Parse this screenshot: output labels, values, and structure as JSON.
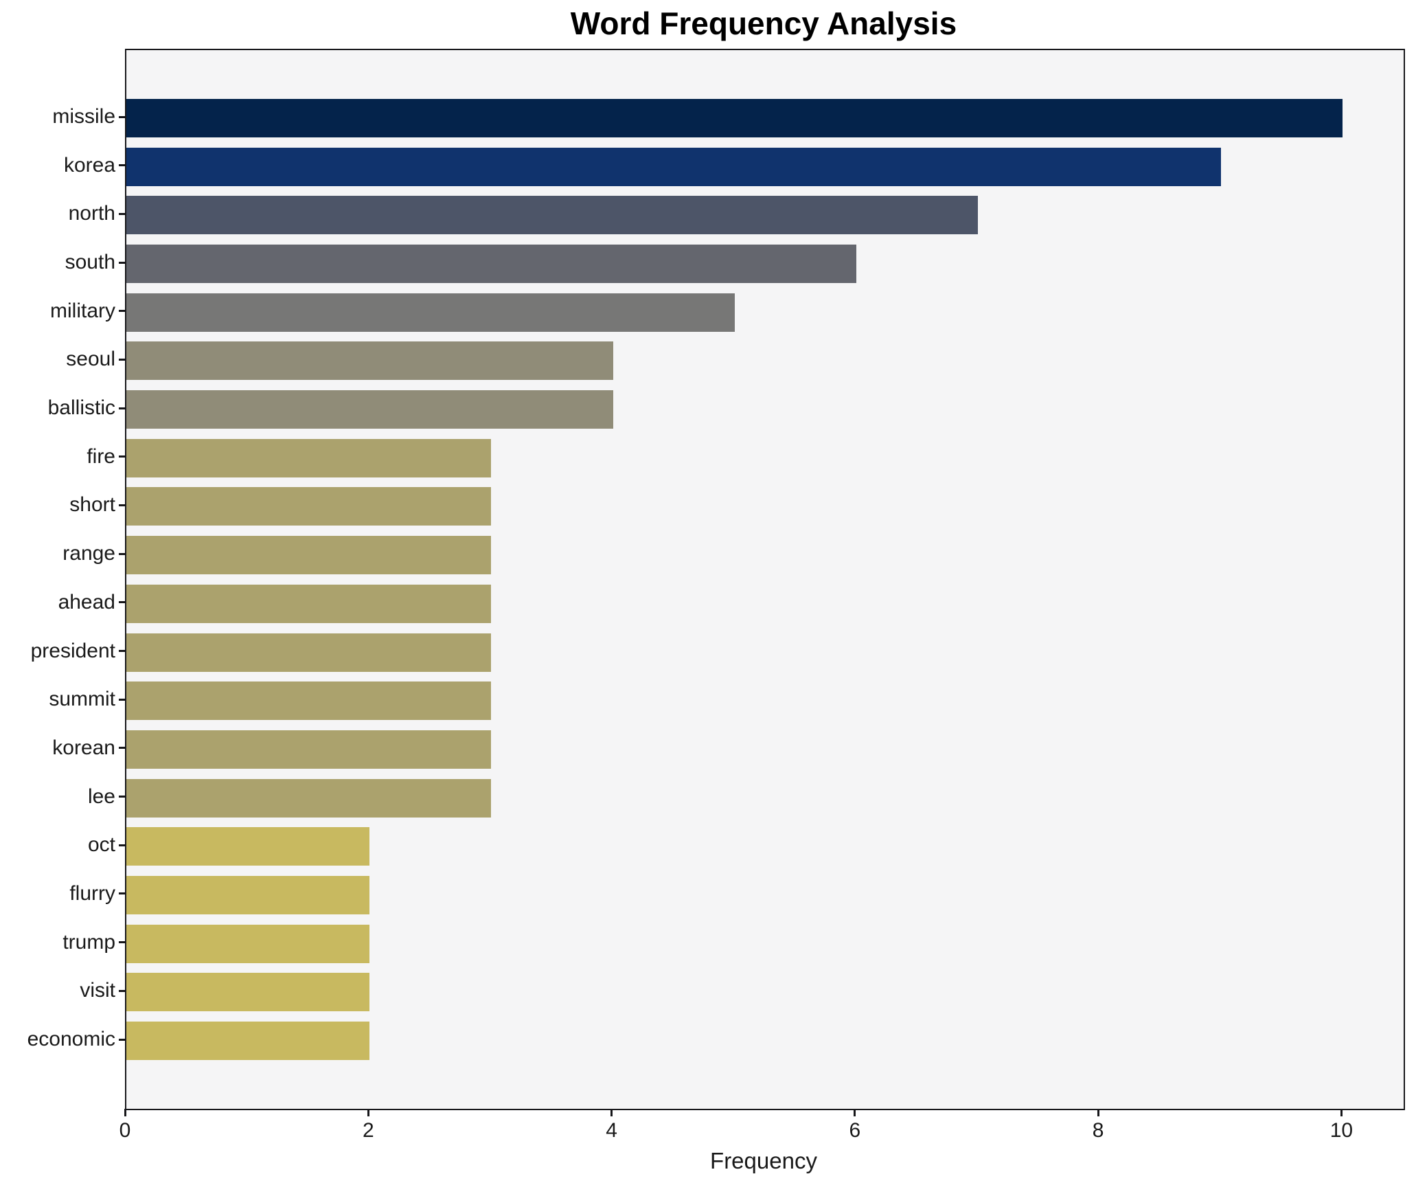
{
  "chart_data": {
    "type": "bar",
    "orientation": "horizontal",
    "title": "Word Frequency Analysis",
    "xlabel": "Frequency",
    "ylabel": "",
    "categories": [
      "missile",
      "korea",
      "north",
      "south",
      "military",
      "seoul",
      "ballistic",
      "fire",
      "short",
      "range",
      "ahead",
      "president",
      "summit",
      "korean",
      "lee",
      "oct",
      "flurry",
      "trump",
      "visit",
      "economic"
    ],
    "values": [
      10,
      9,
      7,
      6,
      5,
      4,
      4,
      3,
      3,
      3,
      3,
      3,
      3,
      3,
      3,
      2,
      2,
      2,
      2,
      2
    ],
    "bar_colors": [
      "#04234b",
      "#10336d",
      "#4d5568",
      "#64666e",
      "#777776",
      "#908c78",
      "#908c78",
      "#aba26d",
      "#aba26d",
      "#aba26d",
      "#aba26d",
      "#aba26d",
      "#aba26d",
      "#aba26d",
      "#aba26d",
      "#c8b960",
      "#c8b960",
      "#c8b960",
      "#c8b960",
      "#c8b960"
    ],
    "xlim": [
      0,
      10.5
    ],
    "xticks": [
      0,
      2,
      4,
      6,
      8,
      10
    ],
    "grid": false,
    "legend": null,
    "plot_bg": "#f5f5f6",
    "fig_bg": "#ffffff",
    "frame_color": "#17171a"
  }
}
